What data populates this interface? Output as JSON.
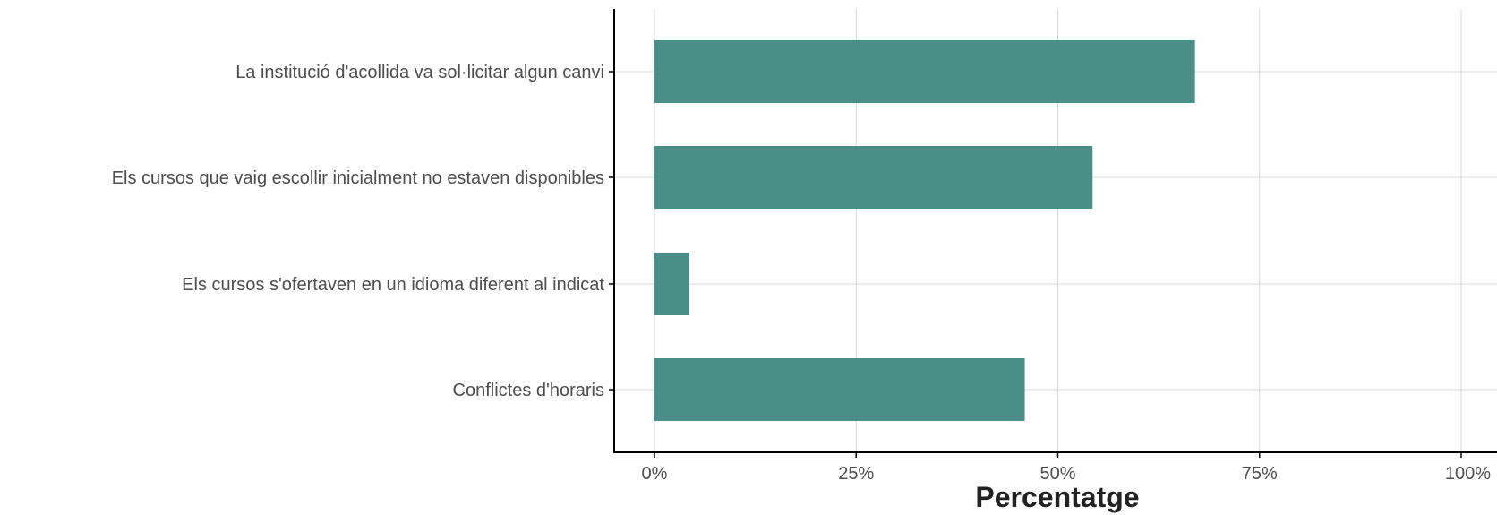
{
  "chart_data": {
    "type": "bar",
    "orientation": "horizontal",
    "categories": [
      "La institució d'acollida va sol·licitar algun canvi",
      "Els cursos que vaig escollir inicialment no estaven disponibles",
      "Els cursos s'ofertaven en un idioma diferent al indicat",
      "Conflictes d'horaris"
    ],
    "values": [
      0.67,
      0.543,
      0.043,
      0.459
    ],
    "xlim": [
      0,
      1
    ],
    "x_ticks": [
      0,
      0.25,
      0.5,
      0.75,
      1
    ],
    "x_tick_labels": [
      "0%",
      "25%",
      "50%",
      "75%",
      "100%"
    ],
    "xlabel": "Percentatge",
    "ylabel": "",
    "title": "",
    "grid": true,
    "bar_color": "#4a8f87",
    "grid_color": "#d9d9d9",
    "axis_color": "#000000"
  }
}
